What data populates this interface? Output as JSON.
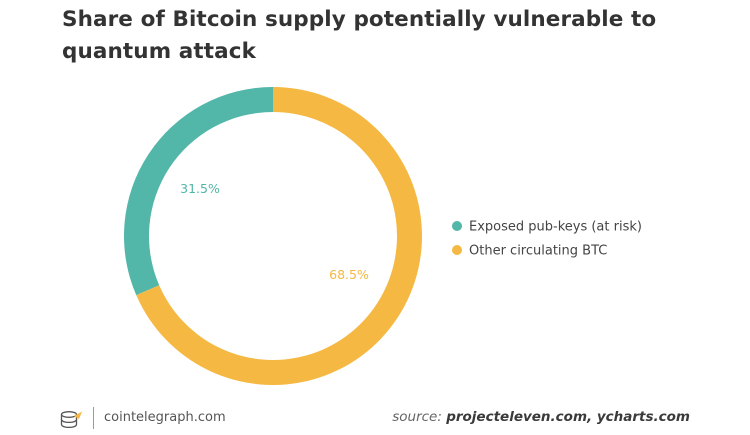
{
  "chart_data": {
    "type": "pie",
    "variant": "donut",
    "title": "Share of Bitcoin supply potentially vulnerable to quantum attack",
    "slices": [
      {
        "label": "Exposed pub-keys (at risk)",
        "value": 31.5,
        "display": "31.5%",
        "color": "#52b6a9"
      },
      {
        "label": "Other circulating BTC",
        "value": 68.5,
        "display": "68.5%",
        "color": "#f5b842"
      }
    ],
    "legend_position": "right"
  },
  "footer": {
    "brand": "cointelegraph.com",
    "source_label": "source:",
    "source_value": "projecteleven.com, ycharts.com"
  }
}
